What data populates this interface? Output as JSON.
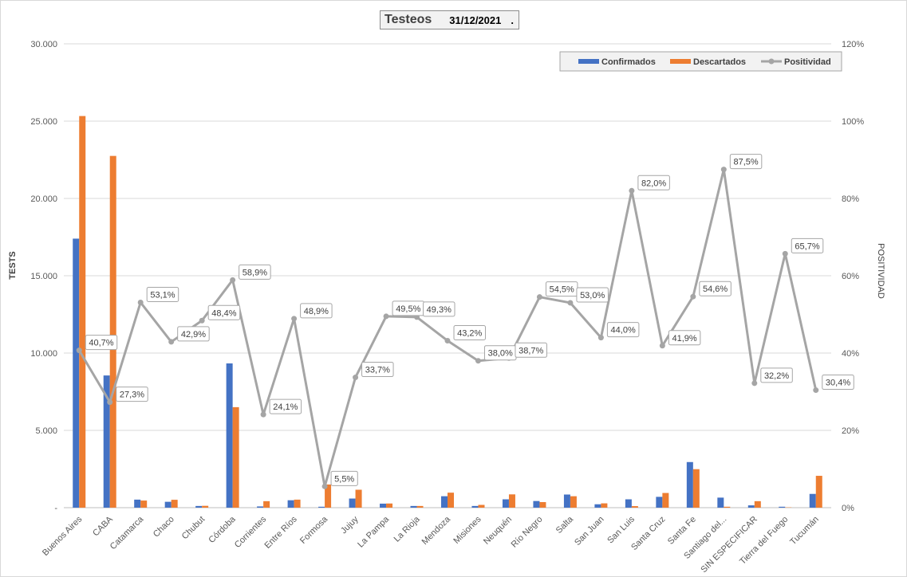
{
  "header": {
    "title": "Testeos",
    "date": "31/12/2021",
    "dot": "."
  },
  "chart_data": {
    "type": "bar",
    "title": "Testeos",
    "ylabel": "TESTS",
    "y2label": "POSITIVIDAD",
    "ylim": [
      0,
      30000
    ],
    "y2lim": [
      0,
      120
    ],
    "y_ticks": [
      "-",
      "5.000",
      "10.000",
      "15.000",
      "20.000",
      "25.000",
      "30.000"
    ],
    "y2_ticks": [
      "0%",
      "20%",
      "40%",
      "60%",
      "80%",
      "100%",
      "120%"
    ],
    "grid": true,
    "legend_position": "top-right",
    "categories": [
      "Buenos Aires",
      "CABA",
      "Catamarca",
      "Chaco",
      "Chubut",
      "Córdoba",
      "Corrientes",
      "Entre Ríos",
      "Formosa",
      "Jujuy",
      "La Pampa",
      "La Rioja",
      "Mendoza",
      "Misiones",
      "Neuquén",
      "Río Negro",
      "Salta",
      "San Juan",
      "San Luis",
      "Santa Cruz",
      "Santa Fe",
      "Santiago del...",
      "SIN ESPECIFICAR",
      "Tierra del Fuego",
      "Tucumán"
    ],
    "series": [
      {
        "name": "Confirmados",
        "kind": "bar",
        "color": "#4472C4",
        "values": [
          17400,
          8550,
          520,
          380,
          110,
          9330,
          80,
          480,
          60,
          590,
          260,
          110,
          740,
          110,
          540,
          430,
          850,
          220,
          540,
          700,
          2950,
          650,
          150,
          60,
          890
        ]
      },
      {
        "name": "Descartados",
        "kind": "bar",
        "color": "#ED7D31",
        "values": [
          25330,
          22750,
          460,
          510,
          120,
          6500,
          420,
          520,
          1500,
          1160,
          270,
          110,
          970,
          180,
          860,
          360,
          740,
          280,
          100,
          950,
          2490,
          60,
          420,
          20,
          2060
        ]
      },
      {
        "name": "Positividad",
        "kind": "line",
        "axis": "y2",
        "color": "#A5A5A5",
        "values": [
          40.7,
          27.3,
          53.1,
          42.9,
          48.4,
          58.9,
          24.1,
          48.9,
          5.5,
          33.7,
          49.5,
          49.3,
          43.2,
          38.0,
          38.7,
          54.5,
          53.0,
          44.0,
          82.0,
          41.9,
          54.6,
          87.5,
          32.2,
          65.7,
          30.4
        ],
        "labels": [
          "40,7%",
          "27,3%",
          "53,1%",
          "42,9%",
          "48,4%",
          "58,9%",
          "24,1%",
          "48,9%",
          "5,5%",
          "33,7%",
          "49,5%",
          "49,3%",
          "43,2%",
          "38,0%",
          "38,7%",
          "54,5%",
          "53,0%",
          "44,0%",
          "82,0%",
          "41,9%",
          "54,6%",
          "87,5%",
          "32,2%",
          "65,7%",
          "30,4%"
        ]
      }
    ]
  }
}
